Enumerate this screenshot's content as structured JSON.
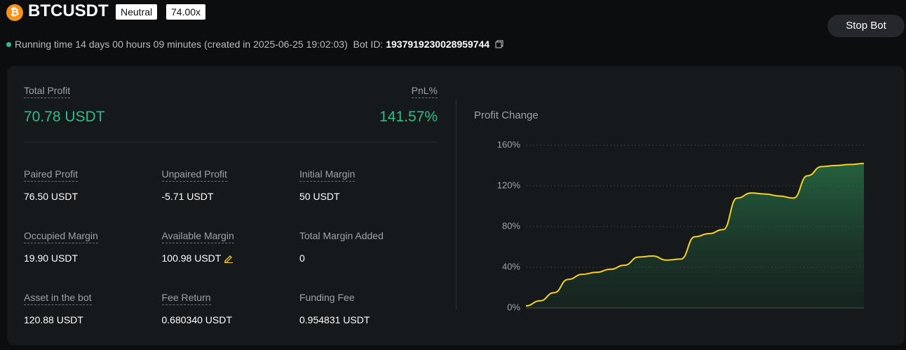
{
  "header": {
    "symbol": "BTCUSDT",
    "tags": [
      "Neutral",
      "74.00x"
    ],
    "button": "Stop Bot"
  },
  "status": {
    "running": "Running time 14 days 00 hours 09 minutes (created in 2025-06-25 19:02:03)",
    "bot_id_label": "Bot ID:",
    "bot_id": "1937919230028959744"
  },
  "summary": {
    "total_profit_label": "Total Profit",
    "total_profit": "70.78 USDT",
    "pnl_label": "PnL%",
    "pnl": "141.57%"
  },
  "stats": [
    {
      "label": "Paired Profit",
      "value": "76.50 USDT"
    },
    {
      "label": "Unpaired Profit",
      "value": "-5.71 USDT"
    },
    {
      "label": "Initial Margin",
      "value": "50 USDT"
    },
    {
      "label": "Occupied Margin",
      "value": "19.90 USDT"
    },
    {
      "label": "Available Margin",
      "value": "100.98 USDT"
    },
    {
      "label": "Total Margin Added",
      "value": "0"
    },
    {
      "label": "Asset in the bot",
      "value": "120.88 USDT"
    },
    {
      "label": "Fee Return",
      "value": "0.680340 USDT"
    },
    {
      "label": "Funding Fee",
      "value": "0.954831 USDT"
    }
  ],
  "chart_data": {
    "type": "area",
    "title": "Profit Change",
    "values": [
      2,
      7,
      15,
      28,
      33,
      35,
      38,
      42,
      50,
      51,
      47,
      48,
      70,
      73,
      77,
      108,
      113,
      112,
      110,
      108,
      130,
      139,
      140,
      141,
      142
    ],
    "color": "#f5d128",
    "ylim": [
      0,
      160
    ],
    "yticks": [
      {
        "value": 0,
        "label": "0%"
      },
      {
        "value": 40,
        "label": "40%"
      },
      {
        "value": 80,
        "label": "80%"
      },
      {
        "value": 120,
        "label": "120%"
      },
      {
        "value": 160,
        "label": "160%"
      }
    ],
    "grid": true
  }
}
